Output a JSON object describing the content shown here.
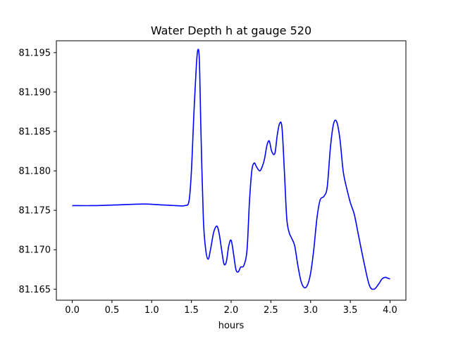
{
  "chart_data": {
    "type": "line",
    "title": "Water Depth h at gauge 520",
    "xlabel": "hours",
    "ylabel": "",
    "xlim": [
      -0.2,
      4.2
    ],
    "ylim": [
      81.1636,
      81.1965
    ],
    "xticks": [
      0.0,
      0.5,
      1.0,
      1.5,
      2.0,
      2.5,
      3.0,
      3.5,
      4.0
    ],
    "xtick_labels": [
      "0.0",
      "0.5",
      "1.0",
      "1.5",
      "2.0",
      "2.5",
      "3.0",
      "3.5",
      "4.0"
    ],
    "yticks": [
      81.165,
      81.17,
      81.175,
      81.18,
      81.185,
      81.19,
      81.195
    ],
    "ytick_labels": [
      "81.165",
      "81.170",
      "81.175",
      "81.180",
      "81.185",
      "81.190",
      "81.195"
    ],
    "grid": false,
    "series": [
      {
        "color": "#0000ff",
        "x": [
          0.0,
          0.3,
          0.6,
          0.9,
          1.1,
          1.3,
          1.42,
          1.47,
          1.5,
          1.53,
          1.56,
          1.58,
          1.6,
          1.62,
          1.65,
          1.68,
          1.71,
          1.74,
          1.78,
          1.82,
          1.85,
          1.88,
          1.91,
          1.94,
          1.97,
          2.0,
          2.03,
          2.06,
          2.09,
          2.12,
          2.16,
          2.2,
          2.23,
          2.26,
          2.29,
          2.32,
          2.36,
          2.39,
          2.42,
          2.45,
          2.48,
          2.51,
          2.55,
          2.58,
          2.61,
          2.64,
          2.67,
          2.7,
          2.73,
          2.76,
          2.8,
          2.84,
          2.88,
          2.92,
          2.96,
          3.0,
          3.04,
          3.08,
          3.12,
          3.17,
          3.21,
          3.25,
          3.29,
          3.33,
          3.37,
          3.41,
          3.45,
          3.5,
          3.55,
          3.6,
          3.67,
          3.74,
          3.8,
          3.86,
          3.9,
          3.94,
          3.97,
          4.0
        ],
        "y": [
          81.1756,
          81.1756,
          81.1757,
          81.1758,
          81.1757,
          81.1756,
          81.1756,
          81.1762,
          81.18,
          81.187,
          81.193,
          81.1953,
          81.194,
          81.185,
          81.174,
          81.17,
          81.1688,
          81.17,
          81.1722,
          81.173,
          81.172,
          81.17,
          81.1682,
          81.1685,
          81.1705,
          81.1712,
          81.1695,
          81.1675,
          81.1672,
          81.1678,
          81.168,
          81.17,
          81.176,
          81.18,
          81.181,
          81.1805,
          81.18,
          81.1805,
          81.1815,
          81.1832,
          81.1838,
          81.1825,
          81.1822,
          81.1845,
          81.186,
          81.1855,
          81.18,
          81.174,
          81.1722,
          81.1715,
          81.1705,
          81.168,
          81.166,
          81.1652,
          81.1655,
          81.167,
          81.17,
          81.174,
          81.1763,
          81.1768,
          81.178,
          81.183,
          81.186,
          81.1862,
          81.184,
          81.18,
          81.178,
          81.176,
          81.1745,
          81.172,
          81.1685,
          81.1655,
          81.165,
          81.1657,
          81.1663,
          81.1665,
          81.1664,
          81.1663
        ]
      }
    ]
  }
}
